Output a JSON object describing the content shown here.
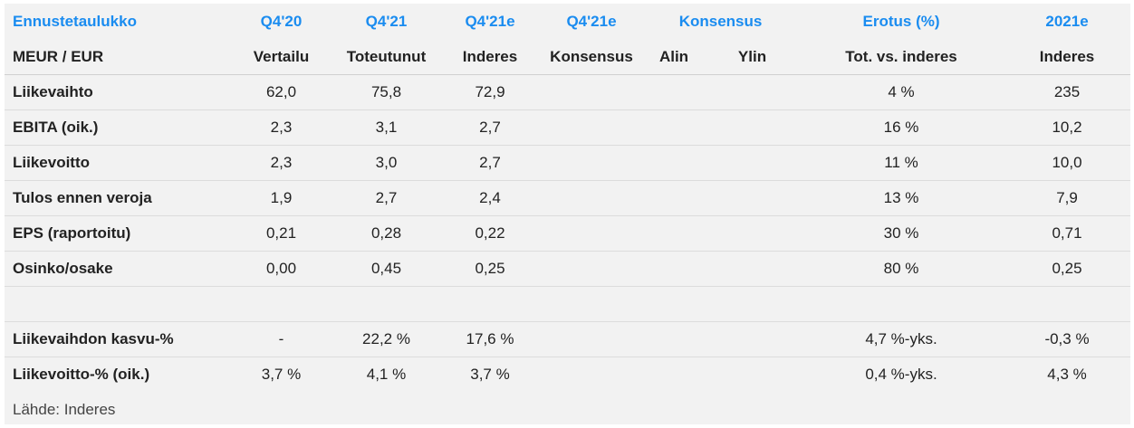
{
  "header_top": {
    "title": "Ennustetaulukko",
    "q4_20": "Q4'20",
    "q4_21": "Q4'21",
    "q4_21e": "Q4'21e",
    "q4_21e_cons": "Q4'21e",
    "konsensus": "Konsensus",
    "erotus": "Erotus (%)",
    "y2021e": "2021e"
  },
  "header_sub": {
    "unit": "MEUR / EUR",
    "vertailu": "Vertailu",
    "toteutunut": "Toteutunut",
    "inderes": "Inderes",
    "konsensus": "Konsensus",
    "alin": "Alin",
    "ylin": "Ylin",
    "tot_vs_inderes": "Tot. vs. inderes",
    "inderes_2021": "Inderes"
  },
  "rows": [
    {
      "label": "Liikevaihto",
      "vertailu": "62,0",
      "toteutunut": "75,8",
      "inderes": "72,9",
      "konsensus": "",
      "alin": "",
      "ylin": "",
      "erotus": "4 %",
      "y2021": "235"
    },
    {
      "label": "EBITA (oik.)",
      "vertailu": "2,3",
      "toteutunut": "3,1",
      "inderes": "2,7",
      "konsensus": "",
      "alin": "",
      "ylin": "",
      "erotus": "16 %",
      "y2021": "10,2"
    },
    {
      "label": "Liikevoitto",
      "vertailu": "2,3",
      "toteutunut": "3,0",
      "inderes": "2,7",
      "konsensus": "",
      "alin": "",
      "ylin": "",
      "erotus": "11 %",
      "y2021": "10,0"
    },
    {
      "label": "Tulos ennen veroja",
      "vertailu": "1,9",
      "toteutunut": "2,7",
      "inderes": "2,4",
      "konsensus": "",
      "alin": "",
      "ylin": "",
      "erotus": "13 %",
      "y2021": "7,9"
    },
    {
      "label": "EPS (raportoitu)",
      "vertailu": "0,21",
      "toteutunut": "0,28",
      "inderes": "0,22",
      "konsensus": "",
      "alin": "",
      "ylin": "",
      "erotus": "30 %",
      "y2021": "0,71"
    },
    {
      "label": "Osinko/osake",
      "vertailu": "0,00",
      "toteutunut": "0,45",
      "inderes": "0,25",
      "konsensus": "",
      "alin": "",
      "ylin": "",
      "erotus": "80 %",
      "y2021": "0,25"
    }
  ],
  "rows2": [
    {
      "label": "Liikevaihdon kasvu-%",
      "vertailu": "-",
      "toteutunut": "22,2 %",
      "inderes": "17,6 %",
      "konsensus": "",
      "alin": "",
      "ylin": "",
      "erotus": "4,7 %-yks.",
      "y2021": "-0,3 %"
    },
    {
      "label": "Liikevoitto-% (oik.)",
      "vertailu": "3,7 %",
      "toteutunut": "4,1 %",
      "inderes": "3,7 %",
      "konsensus": "",
      "alin": "",
      "ylin": "",
      "erotus": "0,4 %-yks.",
      "y2021": "4,3 %"
    }
  ],
  "source": "Lähde: Inderes",
  "colors": {
    "accent": "#1a8cf0",
    "background": "#f2f2f2"
  }
}
